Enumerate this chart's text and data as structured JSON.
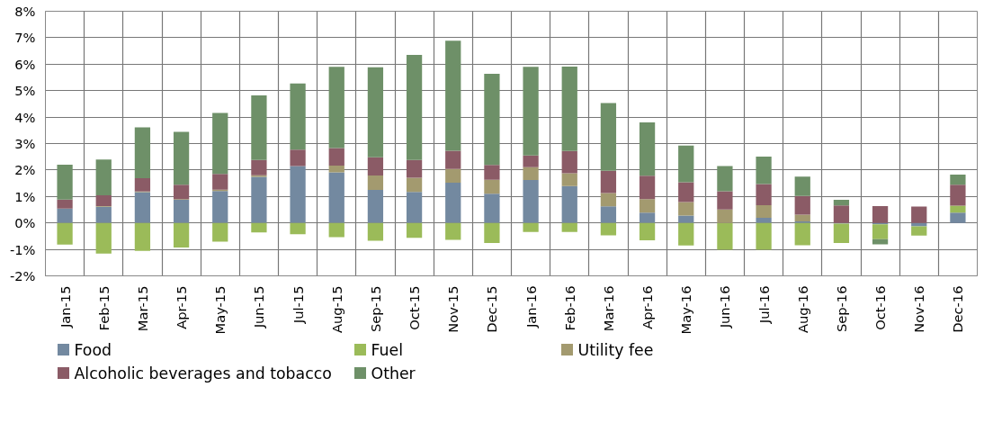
{
  "chart_data": {
    "type": "bar",
    "stacked": true,
    "categories": [
      "Jan-15",
      "Feb-15",
      "Mar-15",
      "Apr-15",
      "May-15",
      "Jun-15",
      "Jul-15",
      "Aug-15",
      "Sep-15",
      "Oct-15",
      "Nov-15",
      "Dec-15",
      "Jan-16",
      "Feb-16",
      "Mar-16",
      "Apr-16",
      "May-16",
      "Jun-16",
      "Jul-16",
      "Aug-16",
      "Sep-16",
      "Oct-16",
      "Nov-16",
      "Dec-16"
    ],
    "series": [
      {
        "name": "Food",
        "color": "#7389a0",
        "values": [
          0.54,
          0.61,
          1.16,
          0.87,
          1.21,
          1.74,
          2.15,
          1.91,
          1.25,
          1.17,
          1.52,
          1.1,
          1.62,
          1.39,
          0.63,
          0.39,
          0.28,
          0,
          0.19,
          0.06,
          -0.03,
          -0.05,
          -0.13,
          0.39
        ]
      },
      {
        "name": "Fuel",
        "color": "#9bbb59",
        "values": [
          -0.82,
          -1.16,
          -1.06,
          -0.93,
          -0.71,
          -0.36,
          -0.43,
          -0.54,
          -0.67,
          -0.56,
          -0.64,
          -0.76,
          -0.34,
          -0.34,
          -0.47,
          -0.66,
          -0.85,
          -1.01,
          -1.01,
          -0.84,
          -0.73,
          -0.56,
          -0.35,
          0.26
        ]
      },
      {
        "name": "Utility fee",
        "color": "#a39a6f",
        "values": [
          0,
          0.03,
          0.03,
          0.03,
          0.05,
          0.06,
          null,
          0.26,
          0.54,
          0.54,
          0.52,
          0.53,
          0.49,
          0.49,
          0.5,
          0.51,
          0.51,
          0.51,
          0.48,
          0.25,
          0,
          0,
          0,
          0
        ]
      },
      {
        "name": "Alcoholic beverages and tobacco",
        "color": "#8b5b66",
        "values": [
          0.34,
          0.4,
          0.5,
          0.54,
          0.59,
          0.58,
          0.62,
          0.66,
          0.69,
          0.67,
          0.69,
          0.56,
          0.44,
          0.84,
          0.84,
          0.88,
          0.75,
          0.69,
          0.8,
          0.71,
          0.66,
          0.64,
          0.62,
          0.79
        ]
      },
      {
        "name": "Other",
        "color": "#6e9068",
        "values": [
          1.32,
          1.36,
          1.92,
          2.0,
          2.31,
          2.44,
          2.5,
          3.07,
          3.4,
          3.97,
          4.16,
          3.45,
          3.35,
          3.19,
          2.56,
          2.02,
          1.38,
          0.95,
          1.04,
          0.73,
          0.21,
          -0.2,
          0,
          0.39
        ]
      }
    ],
    "ylim": [
      -2,
      8
    ],
    "yticks": [
      {
        "value": -2,
        "label": "-2%"
      },
      {
        "value": -1,
        "label": "-1%"
      },
      {
        "value": 0,
        "label": "0%"
      },
      {
        "value": 1,
        "label": "1%"
      },
      {
        "value": 2,
        "label": "2%"
      },
      {
        "value": 3,
        "label": "3%"
      },
      {
        "value": 4,
        "label": "4%"
      },
      {
        "value": 5,
        "label": "5%"
      },
      {
        "value": 6,
        "label": "6%"
      },
      {
        "value": 7,
        "label": "7%"
      },
      {
        "value": 8,
        "label": "8%"
      }
    ],
    "grid": true,
    "legend": "bottom"
  }
}
